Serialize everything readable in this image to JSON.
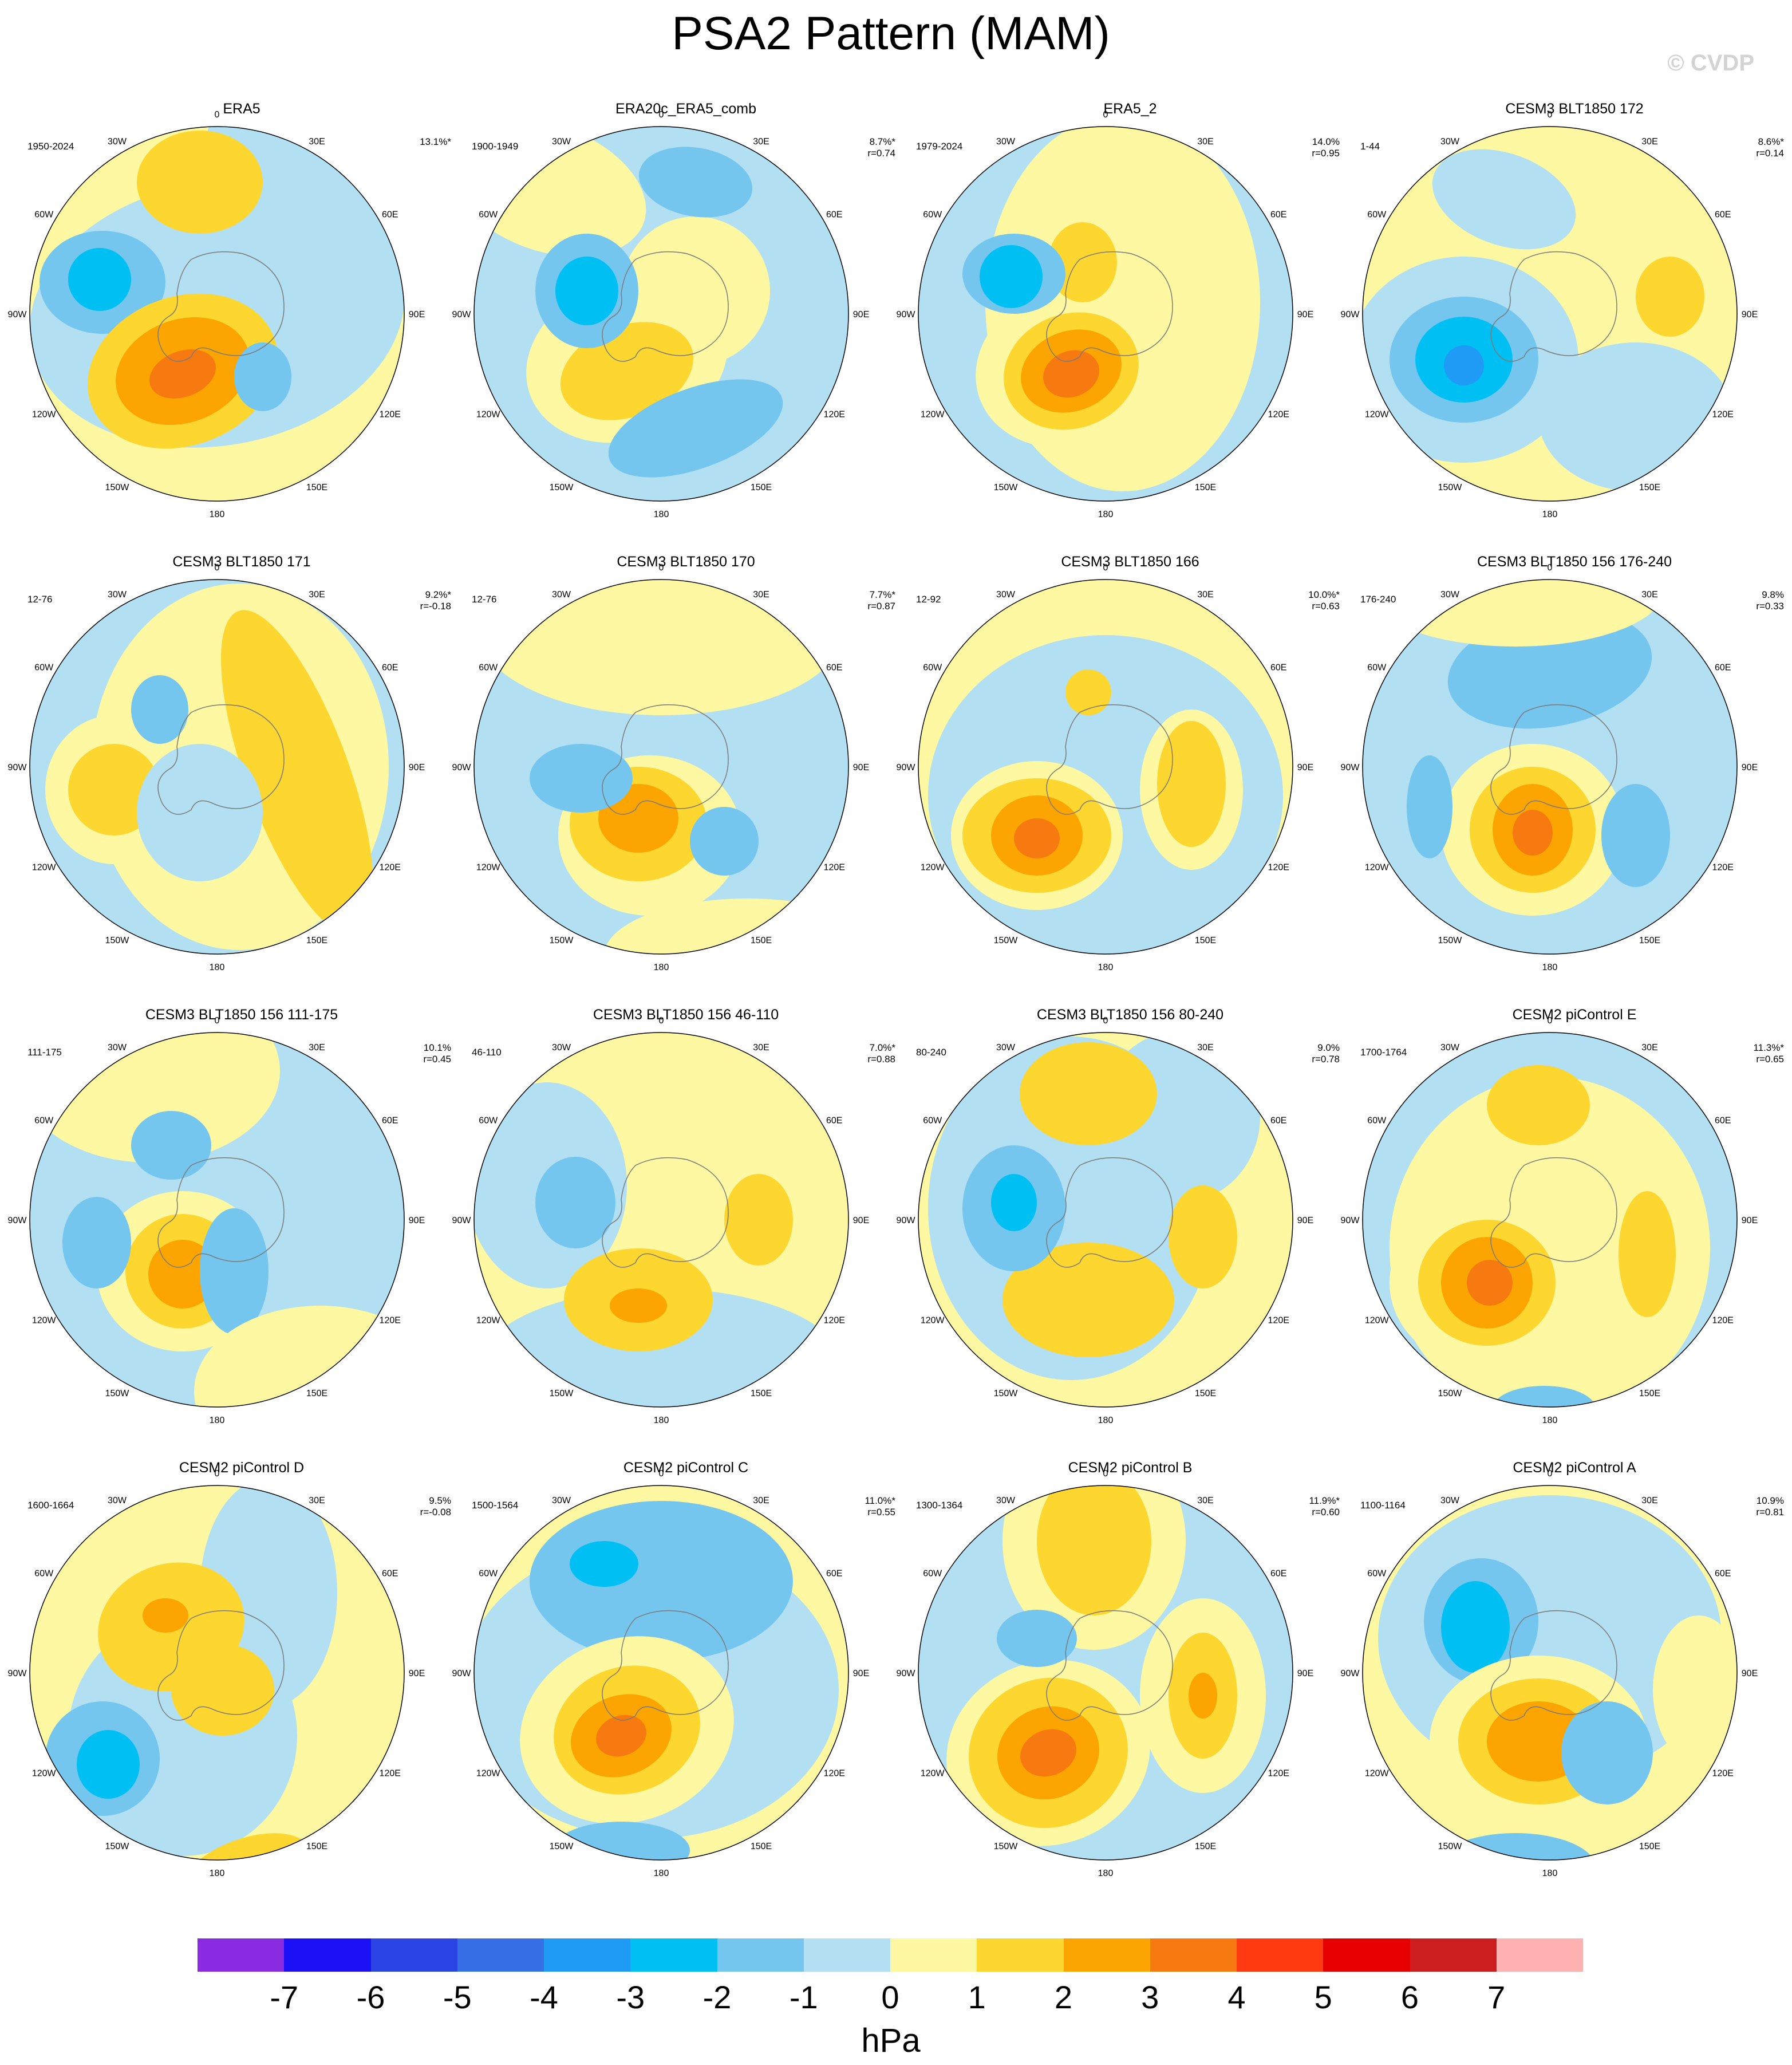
{
  "title": "PSA2 Pattern (MAM)",
  "watermark": "© CVDP",
  "units": "hPa",
  "colorbar": {
    "levels": [
      "-7",
      "-6",
      "-5",
      "-4",
      "-3",
      "-2",
      "-1",
      "0",
      "1",
      "2",
      "3",
      "4",
      "5",
      "6",
      "7"
    ],
    "colors": [
      "#8a2be2",
      "#1a0ff5",
      "#2a43e4",
      "#3670e6",
      "#1f9af5",
      "#00bff2",
      "#74c6ef",
      "#b3dff2",
      "#fdf8a1",
      "#fdd630",
      "#fca500",
      "#f77a10",
      "#ff3a12",
      "#e60000",
      "#cc1e1e",
      "#fdb1b1"
    ]
  },
  "longitude_labels": [
    "0",
    "30E",
    "60E",
    "90E",
    "120E",
    "150E",
    "180",
    "150W",
    "120W",
    "90W",
    "60W",
    "30W"
  ],
  "panels": [
    {
      "title": "ERA5",
      "years": "1950-2024",
      "pct": "13.1%*",
      "r": ""
    },
    {
      "title": "ERA20c_ERA5_comb",
      "years": "1900-1949",
      "pct": "8.7%*",
      "r": "r=0.74"
    },
    {
      "title": "ERA5_2",
      "years": "1979-2024",
      "pct": "14.0%",
      "r": "r=0.95"
    },
    {
      "title": "CESM3 BLT1850 172",
      "years": "1-44",
      "pct": "8.6%*",
      "r": "r=0.14"
    },
    {
      "title": "CESM3 BLT1850 171",
      "years": "12-76",
      "pct": "9.2%*",
      "r": "r=-0.18"
    },
    {
      "title": "CESM3 BLT1850 170",
      "years": "12-76",
      "pct": "7.7%*",
      "r": "r=0.87"
    },
    {
      "title": "CESM3 BLT1850 166",
      "years": "12-92",
      "pct": "10.0%*",
      "r": "r=0.63"
    },
    {
      "title": "CESM3 BLT1850 156 176-240",
      "years": "176-240",
      "pct": "9.8%",
      "r": "r=0.33"
    },
    {
      "title": "CESM3 BLT1850 156 111-175",
      "years": "111-175",
      "pct": "10.1%",
      "r": "r=0.45"
    },
    {
      "title": "CESM3 BLT1850 156 46-110",
      "years": "46-110",
      "pct": "7.0%*",
      "r": "r=0.88"
    },
    {
      "title": "CESM3 BLT1850 156 80-240",
      "years": "80-240",
      "pct": "9.0%",
      "r": "r=0.78"
    },
    {
      "title": "CESM2 piControl E",
      "years": "1700-1764",
      "pct": "11.3%*",
      "r": "r=0.65"
    },
    {
      "title": "CESM2 piControl D",
      "years": "1600-1664",
      "pct": "9.5%",
      "r": "r=-0.08"
    },
    {
      "title": "CESM2 piControl C",
      "years": "1500-1564",
      "pct": "11.0%*",
      "r": "r=0.55"
    },
    {
      "title": "CESM2 piControl B",
      "years": "1300-1364",
      "pct": "11.9%*",
      "r": "r=0.60"
    },
    {
      "title": "CESM2 piControl A",
      "years": "1100-1164",
      "pct": "10.9%",
      "r": "r=0.81"
    }
  ]
}
